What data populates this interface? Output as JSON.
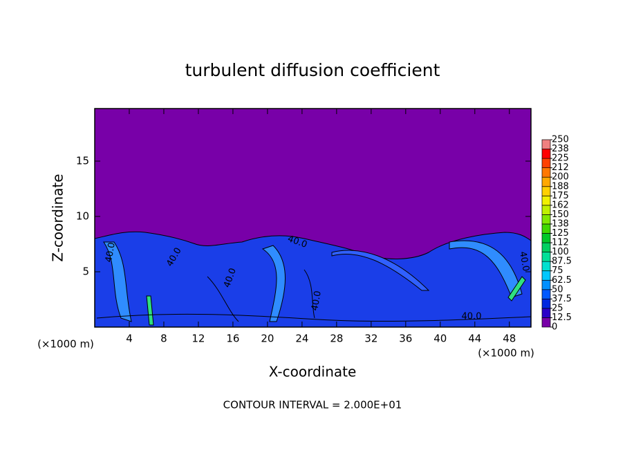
{
  "chart_data": {
    "type": "contour",
    "title": "turbulent diffusion coefficient",
    "xlabel": "X-coordinate",
    "ylabel": "Z-coordinate",
    "x_unit_labels": [
      "(×1000 m)",
      "(×1000 m)"
    ],
    "annotation": "CONTOUR INTERVAL = 2.000E+01",
    "contour_labels": [
      "40.0",
      "40.0",
      "40.0",
      "40.0",
      "40.0",
      "40.0",
      "40.0"
    ],
    "xlim": [
      0,
      50.5
    ],
    "xticks": [
      4,
      8,
      12,
      16,
      20,
      24,
      28,
      32,
      36,
      40,
      44,
      48
    ],
    "ylim": [
      0,
      19.75
    ],
    "yticks": [
      5,
      10,
      15
    ],
    "background_color": "#7800a8",
    "colorbar": {
      "levels": [
        0,
        12.5,
        25,
        37.5,
        50,
        62.5,
        75,
        87.5,
        100,
        {
          "value": 112.5,
          "label": "112"
        },
        125,
        {
          "value": 137.5,
          "label": "138"
        },
        150,
        {
          "value": 162.5,
          "label": "162"
        },
        175,
        {
          "value": 187.5,
          "label": "188"
        },
        200,
        {
          "value": 212.5,
          "label": "212"
        },
        225,
        {
          "value": 237.5,
          "label": "238"
        },
        250
      ],
      "colors": [
        "#7800a8",
        "#2a00c8",
        "#0028e0",
        "#0058ff",
        "#0090ff",
        "#00c8ff",
        "#00e0d0",
        "#00e098",
        "#00d060",
        "#00c828",
        "#40d800",
        "#80e800",
        "#c0f000",
        "#f0f000",
        "#ffd000",
        "#ffa800",
        "#ff7800",
        "#ff4000",
        "#ff0000",
        "#f08080"
      ]
    }
  }
}
